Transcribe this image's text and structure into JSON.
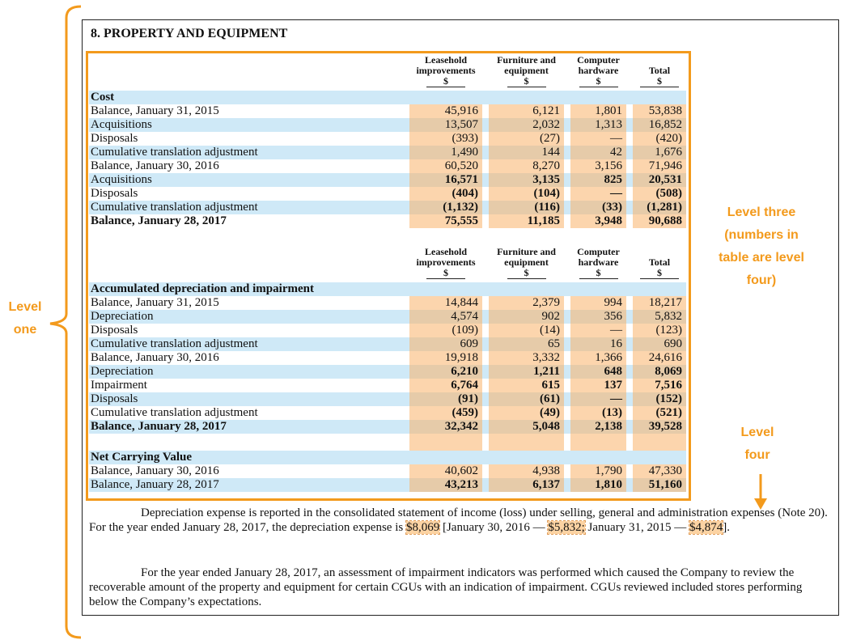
{
  "annotations": {
    "level_one": "Level one",
    "level_three": "Level three (numbers in table are level four)",
    "level_four": "Level four"
  },
  "title": "8. PROPERTY AND EQUIPMENT",
  "table": {
    "sections": [
      {
        "columns": [
          {
            "name": "Leasehold improvements",
            "unit": "$"
          },
          {
            "name": "Furniture and equipment",
            "unit": "$"
          },
          {
            "name": "Computer hardware",
            "unit": "$"
          },
          {
            "name": "Total",
            "unit": "$"
          }
        ],
        "rows": [
          {
            "label": "Cost",
            "bold_label": true
          },
          {
            "label": "Balance, January 31, 2015",
            "values": [
              "45,916",
              "6,121",
              "1,801",
              "53,838"
            ]
          },
          {
            "label": "Acquisitions",
            "values": [
              "13,507",
              "2,032",
              "1,313",
              "16,852"
            ]
          },
          {
            "label": "Disposals",
            "values": [
              "(393)",
              "(27)",
              "—",
              "(420)"
            ]
          },
          {
            "label": "Cumulative translation adjustment",
            "values": [
              "1,490",
              "144",
              "42",
              "1,676"
            ]
          },
          {
            "label": "Balance, January 30, 2016",
            "values": [
              "60,520",
              "8,270",
              "3,156",
              "71,946"
            ]
          },
          {
            "label": "Acquisitions",
            "values": [
              "16,571",
              "3,135",
              "825",
              "20,531"
            ],
            "bold_values": true
          },
          {
            "label": "Disposals",
            "values": [
              "(404)",
              "(104)",
              "—",
              "(508)"
            ],
            "bold_values": true
          },
          {
            "label": "Cumulative translation adjustment",
            "values": [
              "(1,132)",
              "(116)",
              "(33)",
              "(1,281)"
            ],
            "bold_values": true
          },
          {
            "label": "Balance, January 28, 2017",
            "values": [
              "75,555",
              "11,185",
              "3,948",
              "90,688"
            ],
            "bold_label": true,
            "bold_values": true
          }
        ]
      },
      {
        "columns": [
          {
            "name": "Leasehold improvements",
            "unit": "$"
          },
          {
            "name": "Furniture and equipment",
            "unit": "$"
          },
          {
            "name": "Computer hardware",
            "unit": "$"
          },
          {
            "name": "Total",
            "unit": "$"
          }
        ],
        "rows": [
          {
            "label": "Accumulated depreciation and impairment",
            "bold_label": true
          },
          {
            "label": "Balance, January 31, 2015",
            "values": [
              "14,844",
              "2,379",
              "994",
              "18,217"
            ]
          },
          {
            "label": "Depreciation",
            "values": [
              "4,574",
              "902",
              "356",
              "5,832"
            ]
          },
          {
            "label": "Disposals",
            "values": [
              "(109)",
              "(14)",
              "—",
              "(123)"
            ]
          },
          {
            "label": "Cumulative translation adjustment",
            "values": [
              "609",
              "65",
              "16",
              "690"
            ]
          },
          {
            "label": "Balance, January 30, 2016",
            "values": [
              "19,918",
              "3,332",
              "1,366",
              "24,616"
            ]
          },
          {
            "label": "Depreciation",
            "values": [
              "6,210",
              "1,211",
              "648",
              "8,069"
            ],
            "bold_values": true
          },
          {
            "label": "Impairment",
            "values": [
              "6,764",
              "615",
              "137",
              "7,516"
            ],
            "bold_values": true
          },
          {
            "label": "Disposals",
            "values": [
              "(91)",
              "(61)",
              "—",
              "(152)"
            ],
            "bold_values": true
          },
          {
            "label": "Cumulative translation adjustment",
            "values": [
              "(459)",
              "(49)",
              "(13)",
              "(521)"
            ],
            "bold_values": true
          },
          {
            "label": "Balance, January 28, 2017",
            "values": [
              "32,342",
              "5,048",
              "2,138",
              "39,528"
            ],
            "bold_label": true,
            "bold_values": true
          }
        ]
      },
      {
        "rows": [
          {
            "label": "Net Carrying Value",
            "bold_label": true
          },
          {
            "label": "Balance, January 30, 2016",
            "values": [
              "40,602",
              "4,938",
              "1,790",
              "47,330"
            ]
          },
          {
            "label": "Balance, January 28, 2017",
            "values": [
              "43,213",
              "6,137",
              "1,810",
              "51,160"
            ],
            "bold_values": true
          }
        ]
      }
    ]
  },
  "paragraphs": [
    [
      {
        "text": "Depreciation expense is reported in the consolidated statement of income (loss) under selling, general and administration expenses (Note 20). For the year ended January 28, 2017, the depreciation expense is "
      },
      {
        "text": "$8,069",
        "highlight": true
      },
      {
        "text": " [January 30, 2016 — "
      },
      {
        "text": "$5,832;",
        "highlight": true
      },
      {
        "text": " January 31, 2015 — "
      },
      {
        "text": "$4,874",
        "highlight": true
      },
      {
        "text": "]."
      }
    ],
    [
      {
        "text": "For the year ended January 28, 2017, an assessment of impairment indicators was performed which caused the Company to review the recoverable amount of the property and equipment for certain CGUs with an indication of impairment. CGUs reviewed included stores performing below the Company’s expectations."
      }
    ]
  ]
}
